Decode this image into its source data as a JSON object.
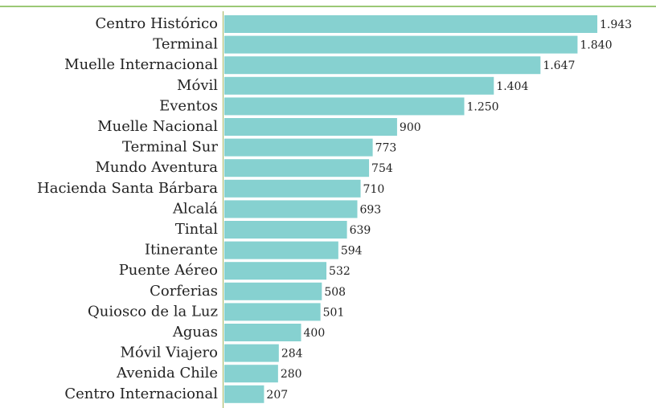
{
  "chart_data": {
    "type": "barh",
    "categories": [
      "Centro Histórico",
      "Terminal",
      "Muelle Internacional",
      "Móvil",
      "Eventos",
      "Muelle Nacional",
      "Terminal Sur",
      "Mundo Aventura",
      "Hacienda Santa Bárbara",
      "Alcalá",
      "Tintal",
      "Itinerante",
      "Puente Aéreo",
      "Corferias",
      "Quiosco de la Luz",
      "Aguas",
      "Móvil Viajero",
      "Avenida Chile",
      "Centro Internacional"
    ],
    "values": [
      1943,
      1840,
      1647,
      1404,
      1250,
      900,
      773,
      754,
      710,
      693,
      639,
      594,
      532,
      508,
      501,
      400,
      284,
      280,
      207
    ],
    "value_labels": [
      "1.943",
      "1.840",
      "1.647",
      "1.404",
      "1.250",
      "900",
      "773",
      "754",
      "710",
      "693",
      "639",
      "594",
      "532",
      "508",
      "501",
      "400",
      "284",
      "280",
      "207"
    ],
    "color": "#86d1d0"
  }
}
